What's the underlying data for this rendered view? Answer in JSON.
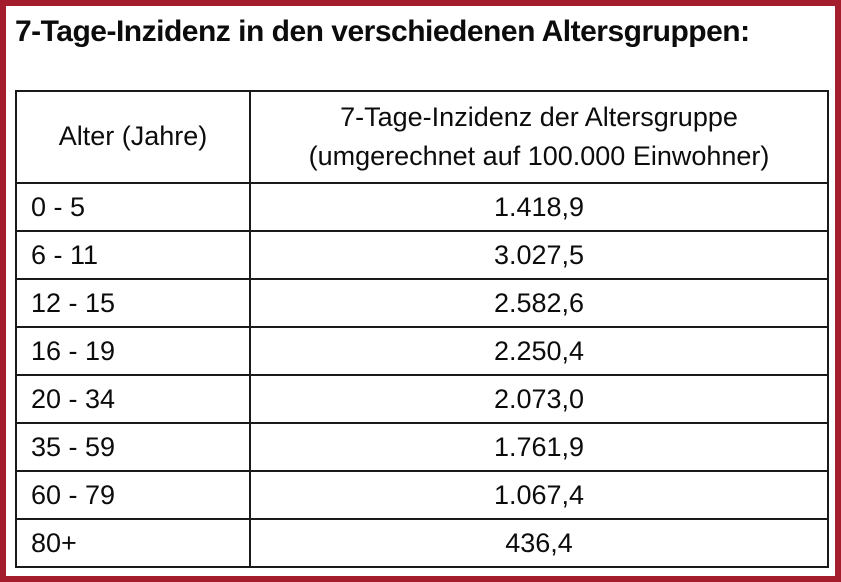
{
  "page": {
    "title": "7-Tage-Inzidenz in den verschiedenen Altersgruppen:",
    "frame_color": "#A31D2C",
    "background_color": "#FFFFFF"
  },
  "table": {
    "border_color": "#1A1A1A",
    "header": {
      "col1": "Alter (Jahre)",
      "col2_line1": "7-Tage-Inzidenz der Altersgruppe",
      "col2_line2": "(umgerechnet auf 100.000 Einwohner)"
    },
    "rows": [
      {
        "age": "0 - 5",
        "value": "1.418,9"
      },
      {
        "age": "6 - 11",
        "value": "3.027,5"
      },
      {
        "age": "12 - 15",
        "value": "2.582,6"
      },
      {
        "age": "16 - 19",
        "value": "2.250,4"
      },
      {
        "age": "20 - 34",
        "value": "2.073,0"
      },
      {
        "age": "35 - 59",
        "value": "1.761,9"
      },
      {
        "age": "60 - 79",
        "value": "1.067,4"
      },
      {
        "age": "80+",
        "value": "436,4"
      }
    ]
  }
}
